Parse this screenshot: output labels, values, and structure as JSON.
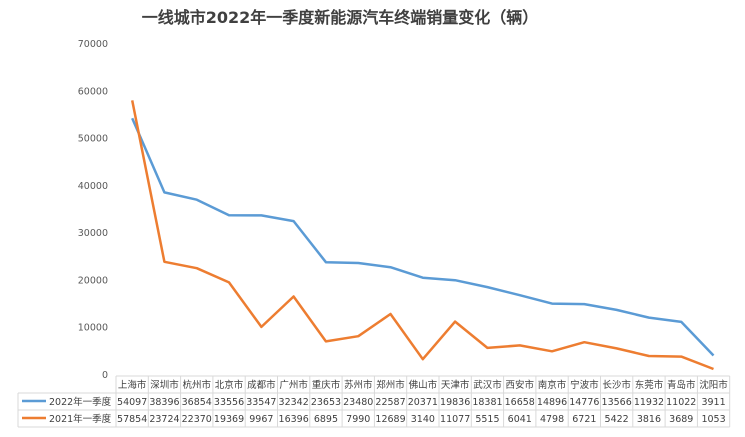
{
  "chart_data": {
    "type": "line",
    "title": "一线城市2022年一季度新能源汽车终端销量变化（辆）",
    "categories": [
      "上海市",
      "深圳市",
      "杭州市",
      "北京市",
      "成都市",
      "广州市",
      "重庆市",
      "苏州市",
      "郑州市",
      "佛山市",
      "天津市",
      "武汉市",
      "西安市",
      "南京市",
      "宁波市",
      "长沙市",
      "东莞市",
      "青岛市",
      "沈阳市"
    ],
    "series": [
      {
        "name": "2022年一季度",
        "color": "#5B9BD5",
        "values": [
          54097,
          38396,
          36854,
          33556,
          33547,
          32342,
          23653,
          23480,
          22587,
          20371,
          19836,
          18381,
          16658,
          14896,
          14776,
          13566,
          11932,
          11022,
          3911
        ]
      },
      {
        "name": "2021年一季度",
        "color": "#ED7D31",
        "values": [
          57854,
          23724,
          22370,
          19369,
          9967,
          16396,
          6895,
          7990,
          12689,
          3140,
          11077,
          5515,
          6041,
          4798,
          6721,
          5422,
          3816,
          3689,
          1053
        ]
      }
    ],
    "ylim": [
      0,
      70000
    ],
    "yticks": [
      0,
      10000,
      20000,
      30000,
      40000,
      50000,
      60000,
      70000
    ],
    "grid": false,
    "legend": "data-table-bottom"
  }
}
